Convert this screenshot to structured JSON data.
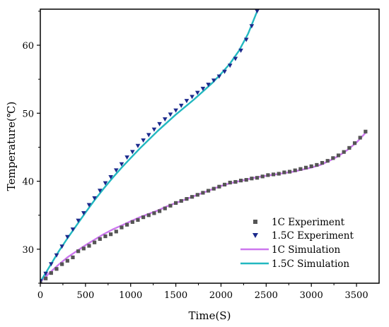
{
  "chart_data": {
    "type": "scatter",
    "xlabel": "Time(S)",
    "ylabel": "Temperature(℃)",
    "xlim": [
      0,
      3750
    ],
    "ylim": [
      25,
      65.3
    ],
    "x_ticks": [
      0,
      500,
      1000,
      1500,
      2000,
      2500,
      3000,
      3500
    ],
    "y_ticks": [
      30,
      40,
      50,
      60
    ],
    "grid": false,
    "legend_position": "bottom-right",
    "series": [
      {
        "name": "1C Experiment",
        "kind": "markers",
        "marker": "square",
        "color": "#555555",
        "x": [
          0,
          60,
          120,
          180,
          240,
          300,
          360,
          420,
          480,
          540,
          600,
          660,
          720,
          780,
          840,
          900,
          960,
          1020,
          1080,
          1140,
          1200,
          1260,
          1320,
          1380,
          1440,
          1500,
          1560,
          1620,
          1680,
          1740,
          1800,
          1860,
          1920,
          1980,
          2040,
          2100,
          2160,
          2220,
          2280,
          2340,
          2400,
          2460,
          2520,
          2580,
          2640,
          2700,
          2760,
          2820,
          2880,
          2940,
          3000,
          3060,
          3120,
          3180,
          3240,
          3300,
          3360,
          3420,
          3480,
          3540,
          3600
        ],
        "y": [
          25.3,
          25.7,
          26.5,
          27.1,
          27.8,
          28.3,
          28.8,
          29.7,
          30.1,
          30.5,
          31.0,
          31.5,
          31.9,
          32.2,
          32.6,
          33.2,
          33.6,
          34.0,
          34.3,
          34.7,
          35.0,
          35.3,
          35.6,
          36.0,
          36.4,
          36.8,
          37.1,
          37.4,
          37.7,
          38.0,
          38.3,
          38.6,
          38.9,
          39.2,
          39.5,
          39.8,
          39.9,
          40.1,
          40.2,
          40.4,
          40.5,
          40.7,
          40.9,
          41.0,
          41.1,
          41.3,
          41.4,
          41.6,
          41.8,
          42.0,
          42.2,
          42.4,
          42.7,
          43.0,
          43.4,
          43.8,
          44.3,
          44.9,
          45.6,
          46.4,
          47.3
        ]
      },
      {
        "name": "1.5C Experiment",
        "kind": "markers",
        "marker": "triangle-down",
        "color": "#1c2a8c",
        "x": [
          0,
          60,
          120,
          180,
          240,
          300,
          360,
          420,
          480,
          540,
          600,
          660,
          720,
          780,
          840,
          900,
          960,
          1020,
          1080,
          1140,
          1200,
          1260,
          1320,
          1380,
          1440,
          1500,
          1560,
          1620,
          1680,
          1740,
          1800,
          1860,
          1920,
          1980,
          2040,
          2100,
          2160,
          2220,
          2280,
          2340,
          2400
        ],
        "y": [
          25.3,
          26.4,
          27.8,
          29.1,
          30.4,
          31.8,
          32.9,
          34.2,
          35.3,
          36.5,
          37.5,
          38.6,
          39.7,
          40.6,
          41.6,
          42.5,
          43.5,
          44.3,
          45.2,
          46.0,
          46.8,
          47.6,
          48.4,
          49.1,
          49.8,
          50.4,
          51.1,
          51.8,
          52.4,
          53.0,
          53.6,
          54.2,
          54.8,
          55.4,
          56.1,
          57.0,
          58.0,
          59.2,
          60.8,
          62.8,
          65.0
        ]
      },
      {
        "name": "1C Simulation",
        "kind": "line",
        "color": "#cc77ee",
        "x": [
          0,
          100,
          200,
          300,
          400,
          500,
          600,
          700,
          800,
          900,
          1000,
          1100,
          1200,
          1300,
          1400,
          1500,
          1600,
          1700,
          1800,
          1900,
          2000,
          2100,
          2200,
          2300,
          2400,
          2500,
          2600,
          2700,
          2800,
          2900,
          3000,
          3100,
          3200,
          3300,
          3400,
          3500,
          3600
        ],
        "y": [
          25.2,
          26.5,
          27.7,
          28.8,
          29.7,
          30.6,
          31.4,
          32.2,
          32.9,
          33.5,
          34.1,
          34.7,
          35.2,
          35.7,
          36.3,
          36.8,
          37.3,
          37.8,
          38.3,
          38.8,
          39.3,
          39.7,
          40.0,
          40.3,
          40.6,
          40.8,
          41.0,
          41.2,
          41.4,
          41.7,
          42.0,
          42.4,
          43.0,
          43.7,
          44.6,
          45.7,
          47.1
        ]
      },
      {
        "name": "1.5C Simulation",
        "kind": "line",
        "color": "#22b8c0",
        "x": [
          0,
          100,
          200,
          300,
          400,
          500,
          600,
          700,
          800,
          900,
          1000,
          1100,
          1200,
          1300,
          1400,
          1500,
          1600,
          1700,
          1800,
          1900,
          2000,
          2100,
          2200,
          2300,
          2400
        ],
        "y": [
          25.2,
          27.4,
          29.6,
          31.6,
          33.5,
          35.4,
          37.2,
          38.9,
          40.5,
          42.0,
          43.4,
          44.8,
          46.1,
          47.4,
          48.6,
          49.8,
          50.9,
          52.0,
          53.2,
          54.4,
          55.8,
          57.3,
          59.2,
          61.7,
          65.0
        ]
      }
    ]
  }
}
